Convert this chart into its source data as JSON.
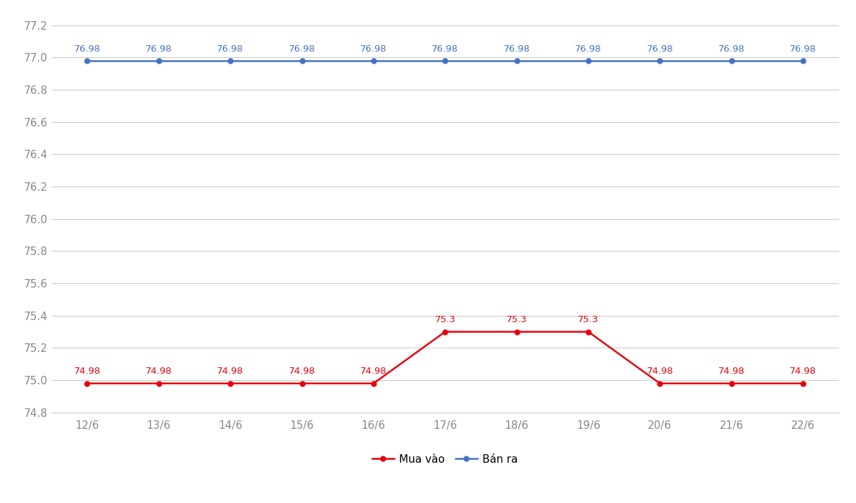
{
  "x_labels": [
    "12/6",
    "13/6",
    "14/6",
    "15/6",
    "16/6",
    "17/6",
    "18/6",
    "19/6",
    "20/6",
    "21/6",
    "22/6"
  ],
  "mua_vao": [
    74.98,
    74.98,
    74.98,
    74.98,
    74.98,
    75.3,
    75.3,
    75.3,
    74.98,
    74.98,
    74.98
  ],
  "ban_ra": [
    76.98,
    76.98,
    76.98,
    76.98,
    76.98,
    76.98,
    76.98,
    76.98,
    76.98,
    76.98,
    76.98
  ],
  "mua_vao_color": "#e8000d",
  "ban_ra_color": "#4472c4",
  "background_color": "#ffffff",
  "grid_color": "#cccccc",
  "ylim": [
    74.8,
    77.2
  ],
  "yticks": [
    74.8,
    75.0,
    75.2,
    75.4,
    75.6,
    75.8,
    76.0,
    76.2,
    76.4,
    76.6,
    76.8,
    77.0,
    77.2
  ],
  "legend_mua_vao": "Mua vào",
  "legend_ban_ra": "Bán ra",
  "marker_size": 5,
  "line_width": 1.8,
  "label_fontsize": 9.5,
  "tick_fontsize": 11,
  "legend_fontsize": 11
}
